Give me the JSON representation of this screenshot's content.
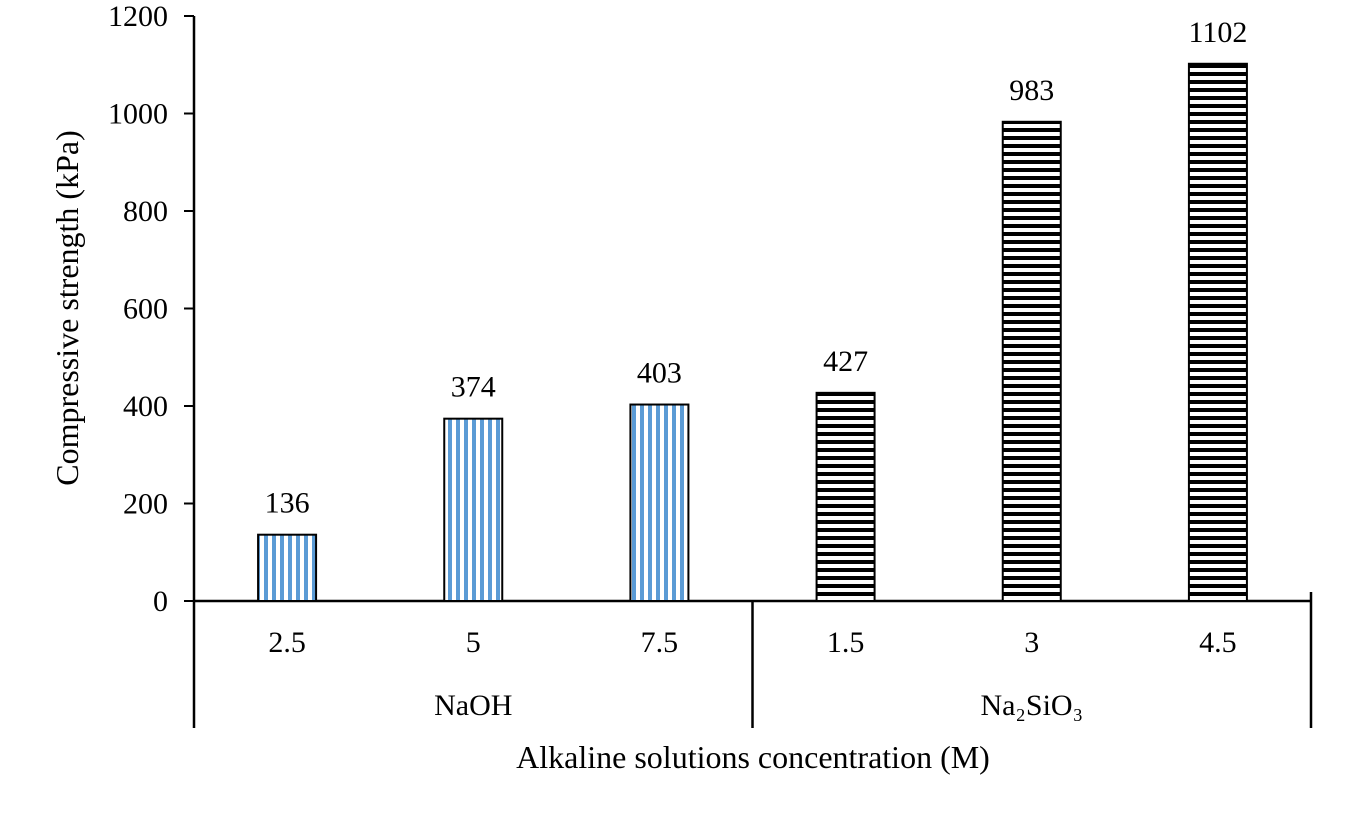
{
  "chart_data": {
    "type": "bar",
    "title": "",
    "xlabel": "Alkaline solutions concentration (M)",
    "ylabel": "Compressive strength (kPa)",
    "ylim": [
      0,
      1200
    ],
    "yticks": [
      0,
      200,
      400,
      600,
      800,
      1000,
      1200
    ],
    "grid": false,
    "legend": "none",
    "groups": [
      {
        "name": "NaOH",
        "pattern": "vertical-stripes",
        "color": "#5b9bd5",
        "categories": [
          "2.5",
          "5",
          "7.5"
        ],
        "values": [
          136,
          374,
          403
        ],
        "labels": [
          "136",
          "374",
          "403"
        ]
      },
      {
        "name": "Na₂SiO₃",
        "pattern": "horizontal-stripes",
        "color": "#000000",
        "categories": [
          "1.5",
          "3",
          "4.5"
        ],
        "values": [
          427,
          983,
          1102
        ],
        "labels": [
          "427",
          "983",
          "1102"
        ]
      }
    ]
  }
}
